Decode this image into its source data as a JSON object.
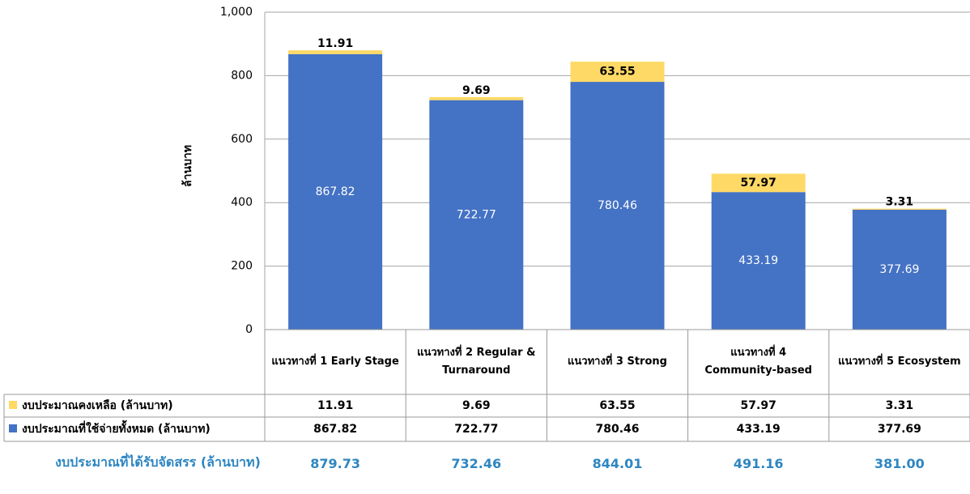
{
  "chart_data": {
    "type": "bar",
    "stacked": true,
    "y_label": "ล้านบาท",
    "categories": [
      "แนวทางที่ 1 Early Stage",
      "แนวทางที่ 2 Regular & Turnaround",
      "แนวทางที่ 3 Strong",
      "แนวทางที่ 4 Community-based",
      "แนวทางที่ 5 Ecosystem"
    ],
    "series": [
      {
        "name": "งบประมาณที่ใช้จ่ายทั้งหมด (ล้านบาท)",
        "color": "#4472c4",
        "label_color": "#ffffff",
        "values": [
          867.82,
          722.77,
          780.46,
          433.19,
          377.69
        ]
      },
      {
        "name": "งบประมาณคงเหลือ (ล้านบาท)",
        "color": "#ffd966",
        "label_color": "#000000",
        "values": [
          11.91,
          9.69,
          63.55,
          57.97,
          3.31
        ]
      }
    ],
    "total": {
      "name": "งบประมาณที่ได้รับจัดสรร (ล้านบาท)",
      "color": "#2e86c1",
      "values": [
        879.73,
        732.46,
        844.01,
        491.16,
        381.0
      ],
      "value_labels": [
        "879.73",
        "732.46",
        "844.01",
        "491.16",
        "381.00"
      ]
    },
    "ylim": [
      0,
      1000
    ],
    "yticks": [
      0,
      200,
      400,
      600,
      800,
      {
        "value": 1000,
        "label": "1,000"
      }
    ],
    "grid": true
  }
}
